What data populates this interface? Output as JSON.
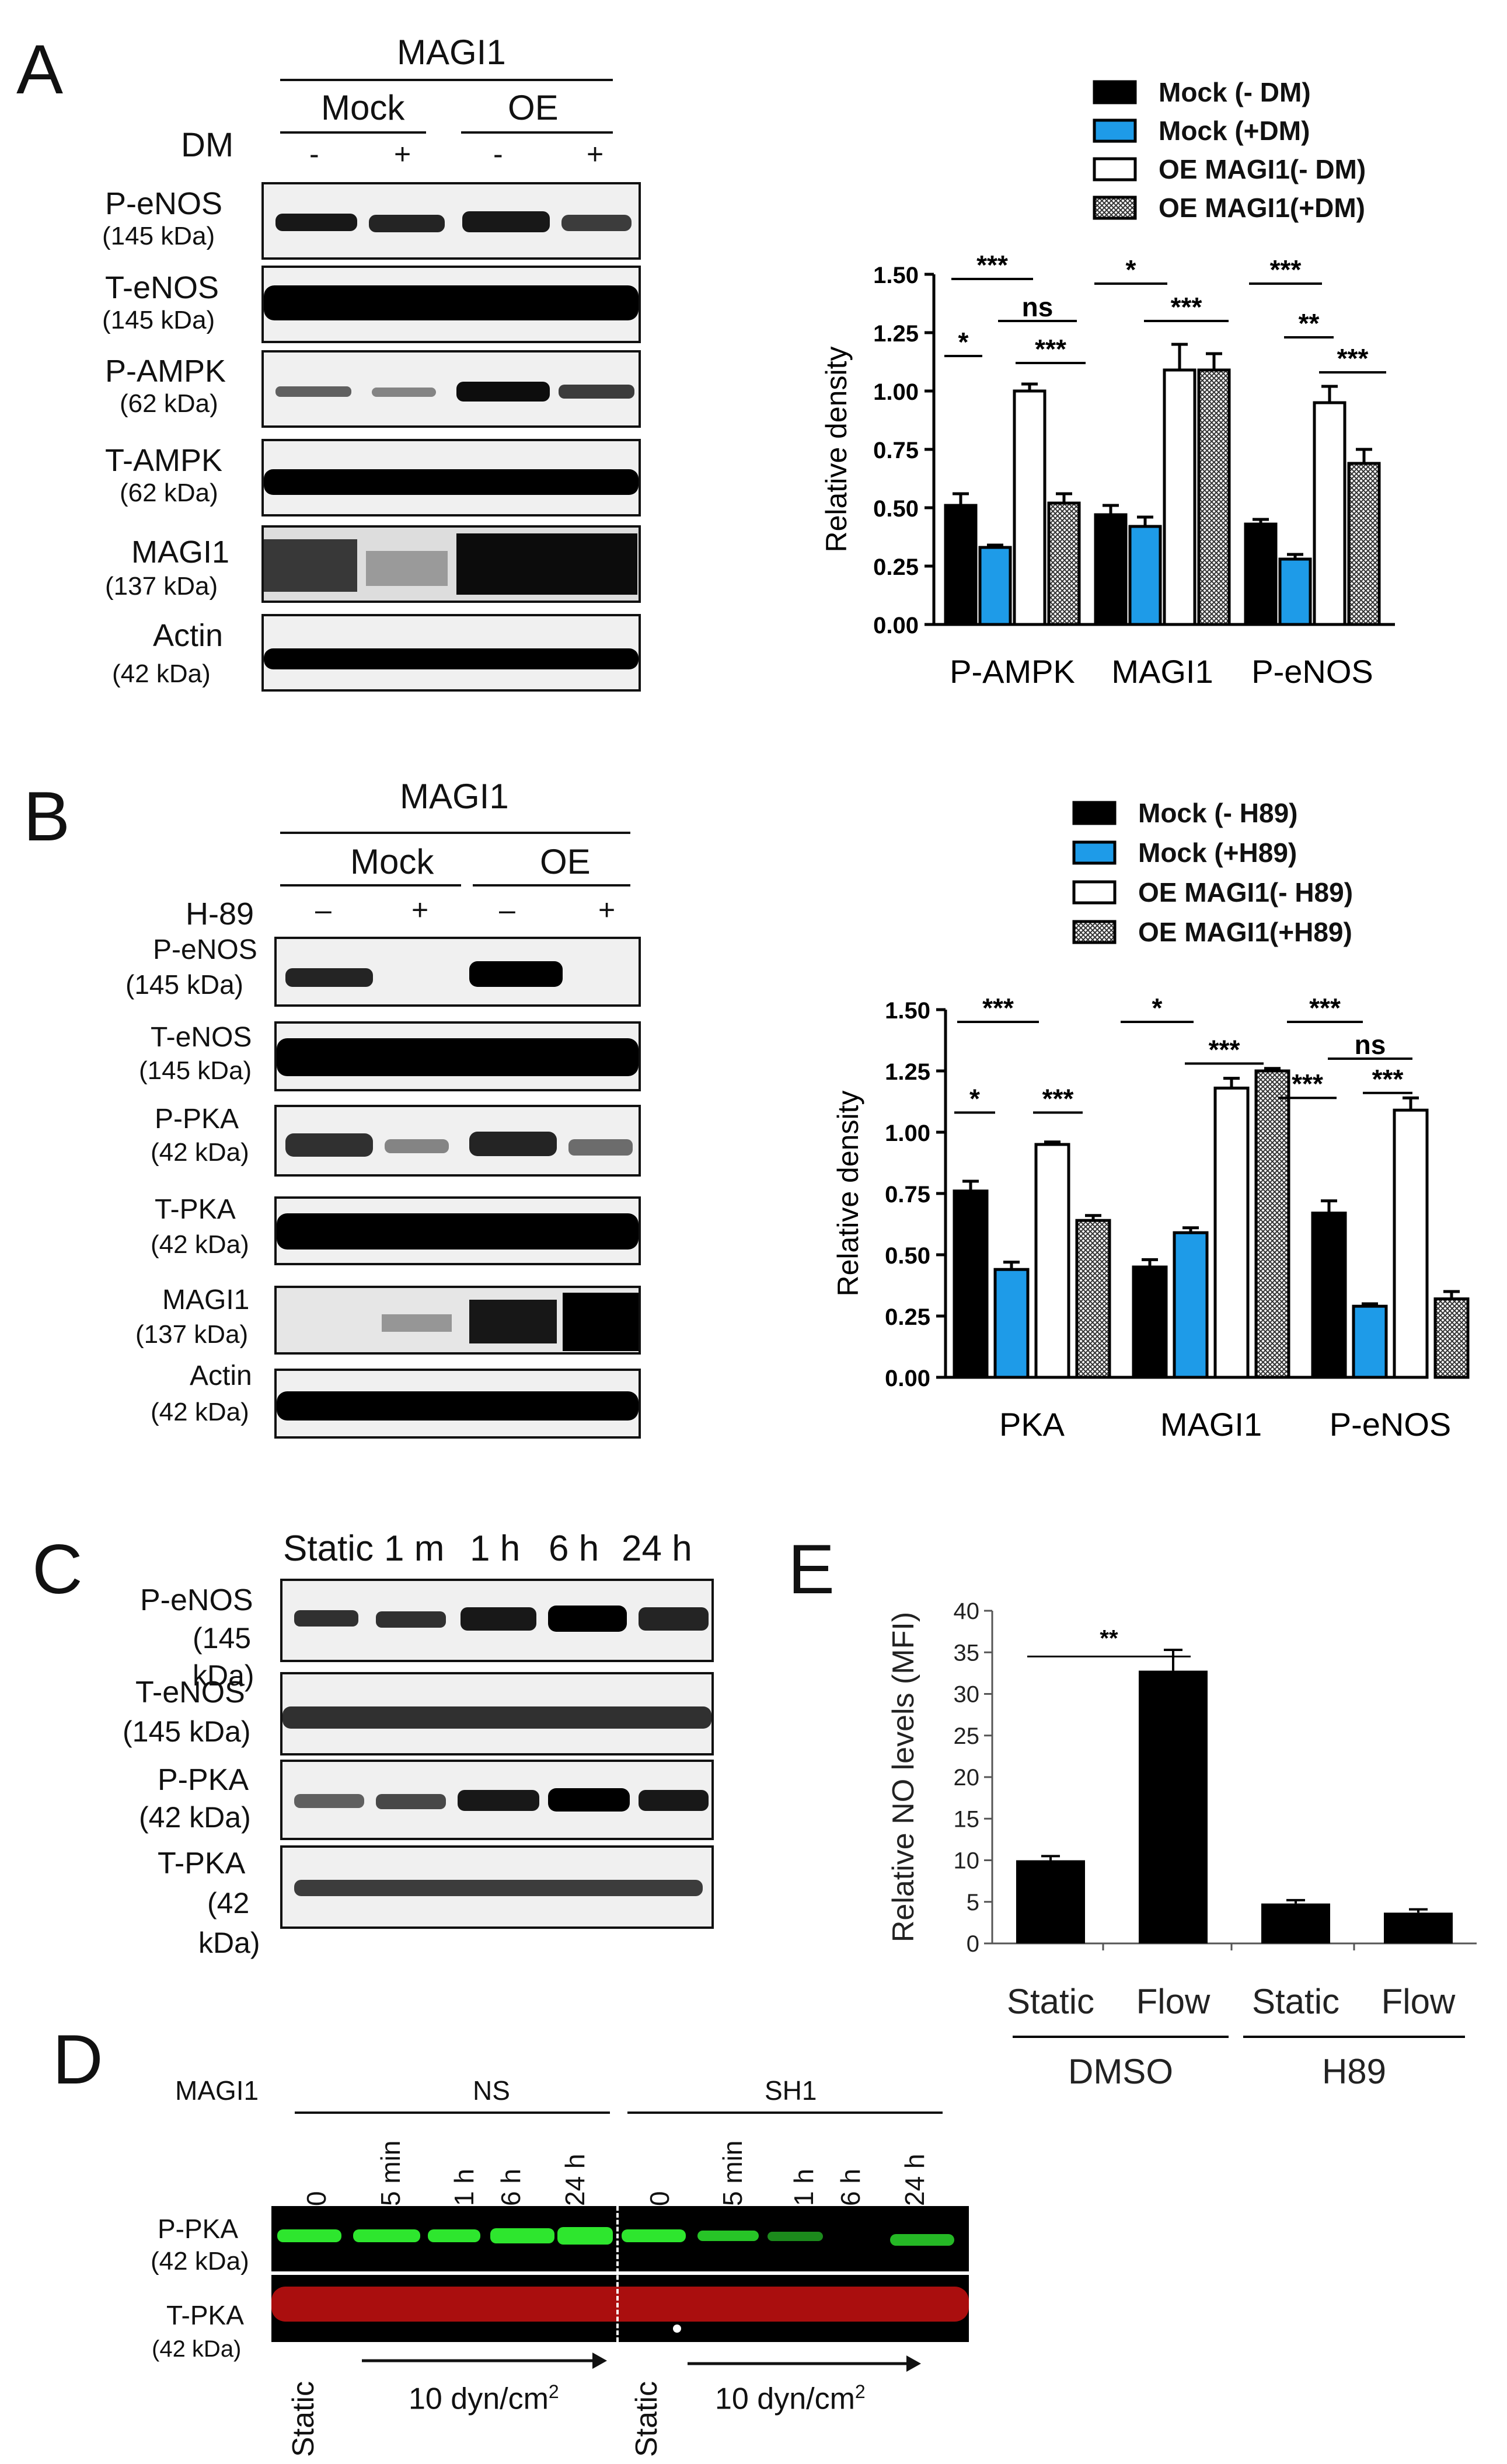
{
  "panels": {
    "A": "A",
    "B": "B",
    "C": "C",
    "D": "D",
    "E": "E"
  },
  "A": {
    "header": "MAGI1",
    "groups": [
      "Mock",
      "OE"
    ],
    "treat_label": "DM",
    "signs": [
      "-",
      "+",
      "-",
      "+"
    ],
    "rows": [
      {
        "name": "P-eNOS",
        "kda": "(145 kDa)"
      },
      {
        "name": "T-eNOS",
        "kda": "(145 kDa)"
      },
      {
        "name": "P-AMPK",
        "kda": "(62 kDa)"
      },
      {
        "name": "T-AMPK",
        "kda": "(62 kDa)"
      },
      {
        "name": "MAGI1",
        "kda": "(137 kDa)"
      },
      {
        "name": "Actin",
        "kda": "(42 kDa)"
      }
    ]
  },
  "B": {
    "header": "MAGI1",
    "groups": [
      "Mock",
      "OE"
    ],
    "treat_label": "H-89",
    "signs": [
      "–",
      "+",
      "–",
      "+"
    ],
    "rows": [
      {
        "name": "P-eNOS",
        "kda": "(145 kDa)"
      },
      {
        "name": "T-eNOS",
        "kda": "(145 kDa)"
      },
      {
        "name": "P-PKA",
        "kda": "(42 kDa)"
      },
      {
        "name": "T-PKA",
        "kda": "(42 kDa)"
      },
      {
        "name": "MAGI1",
        "kda": "(137 kDa)"
      },
      {
        "name": "Actin",
        "kda": "(42 kDa)"
      }
    ]
  },
  "C": {
    "timepoints": [
      "Static",
      "1 m",
      "1 h",
      "6 h",
      "24 h"
    ],
    "rows": [
      {
        "name": "P-eNOS",
        "kda1": "(145",
        "kda2": "kDa)"
      },
      {
        "name": "T-eNOS",
        "kda1": "(145 kDa)",
        "kda2": ""
      },
      {
        "name": "P-PKA",
        "kda1": "(42 kDa)",
        "kda2": ""
      },
      {
        "name": "T-PKA",
        "kda1": "(42",
        "kda2": "kDa)"
      }
    ]
  },
  "D": {
    "gene": "MAGI1",
    "groups": [
      "NS",
      "SH1"
    ],
    "timepoints": [
      "0",
      "5 min",
      "1 h",
      "6 h",
      "24 h"
    ],
    "rows": [
      {
        "name": "P-PKA",
        "kda": "(42 kDa)"
      },
      {
        "name": "T-PKA",
        "kda": "(42 kDa)"
      }
    ],
    "static": "Static",
    "flow": "10 dyn/cm",
    "flow_sup": "2"
  },
  "colors": {
    "black": "#000000",
    "blue": "#1e9be8",
    "white": "#ffffff",
    "hatch": "#9a9a9a",
    "green": "#2ee62e",
    "red": "#c81010"
  },
  "chart_data": [
    {
      "type": "bar",
      "panel": "A",
      "ylabel": "Relative density",
      "ylim": [
        0,
        1.5
      ],
      "yticks": [
        "0.00",
        "0.25",
        "0.50",
        "0.75",
        "1.00",
        "1.25",
        "1.50"
      ],
      "categories": [
        "P-AMPK",
        "MAGI1",
        "P-eNOS"
      ],
      "series": [
        {
          "name": "Mock (- DM)",
          "values": [
            0.51,
            0.47,
            0.43
          ],
          "errors": [
            0.05,
            0.04,
            0.02
          ]
        },
        {
          "name": "Mock (+DM)",
          "values": [
            0.33,
            0.42,
            0.28
          ],
          "errors": [
            0.01,
            0.04,
            0.02
          ]
        },
        {
          "name": "OE MAGI1(- DM)",
          "values": [
            1.0,
            1.09,
            0.95
          ],
          "errors": [
            0.03,
            0.11,
            0.07
          ]
        },
        {
          "name": "OE MAGI1(+DM)",
          "values": [
            0.52,
            1.09,
            0.69
          ],
          "errors": [
            0.04,
            0.07,
            0.06
          ]
        }
      ],
      "annotations": [
        "***",
        "*",
        "ns",
        "***",
        "*",
        "***",
        "***",
        "**",
        "***"
      ]
    },
    {
      "type": "bar",
      "panel": "B",
      "ylabel": "Relative density",
      "ylim": [
        0,
        1.5
      ],
      "yticks": [
        "0.00",
        "0.25",
        "0.50",
        "0.75",
        "1.00",
        "1.25",
        "1.50"
      ],
      "categories": [
        "PKA",
        "MAGI1",
        "P-eNOS"
      ],
      "series": [
        {
          "name": "Mock (- H89)",
          "values": [
            0.76,
            0.45,
            0.67
          ],
          "errors": [
            0.04,
            0.03,
            0.05
          ]
        },
        {
          "name": "Mock (+H89)",
          "values": [
            0.44,
            0.59,
            0.29
          ],
          "errors": [
            0.03,
            0.02,
            0.01
          ]
        },
        {
          "name": "OE MAGI1(- H89)",
          "values": [
            0.95,
            1.18,
            1.09
          ],
          "errors": [
            0.01,
            0.04,
            0.05
          ]
        },
        {
          "name": "OE MAGI1(+H89)",
          "values": [
            0.64,
            1.25,
            0.32
          ],
          "errors": [
            0.02,
            0.01,
            0.03
          ]
        }
      ],
      "annotations": [
        "***",
        "*",
        "***",
        "*",
        "***",
        "***",
        "ns",
        "***",
        "***"
      ]
    },
    {
      "type": "bar",
      "panel": "E",
      "ylabel": "Relative NO levels (MFI)",
      "ylim": [
        0,
        40
      ],
      "yticks": [
        "0",
        "5",
        "10",
        "15",
        "20",
        "25",
        "30",
        "35",
        "40"
      ],
      "categories": [
        "Static",
        "Flow",
        "Static",
        "Flow"
      ],
      "groups": [
        "DMSO",
        "H89"
      ],
      "values": [
        10,
        32.8,
        4.8,
        3.7
      ],
      "errors": [
        0.5,
        2.5,
        0.4,
        0.4
      ],
      "annotations": [
        "**"
      ]
    }
  ]
}
